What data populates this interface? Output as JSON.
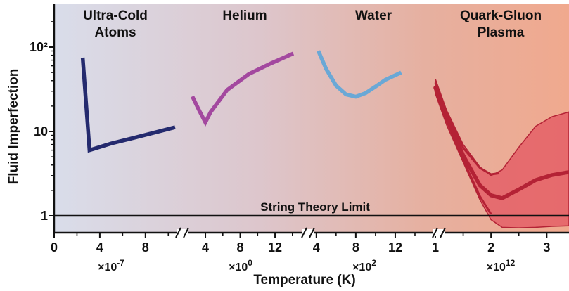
{
  "chart_data": {
    "type": "line",
    "xlabel": "Temperature (K)",
    "ylabel": "Fluid Imperfection",
    "y_scale": "log",
    "y_ticks": [
      {
        "value": 1,
        "label": "1"
      },
      {
        "value": 10,
        "label": "10"
      },
      {
        "value": 100,
        "label": "10²"
      }
    ],
    "limit_line": {
      "value": 1,
      "label": "String Theory Limit"
    },
    "background_colors": [
      "#d9ddea",
      "#ddc6cc",
      "#e6b0a0",
      "#f0a98e"
    ],
    "panels": [
      {
        "name": "Ultra-Cold Atoms",
        "title_lines": [
          "Ultra-Cold",
          "Atoms"
        ],
        "multiplier_label": "×10",
        "multiplier_exp": "-7",
        "xlim": [
          0,
          10.6
        ],
        "ticks": [
          {
            "v": 0,
            "label": "0"
          },
          {
            "v": 4,
            "label": "4"
          },
          {
            "v": 8,
            "label": "8"
          }
        ],
        "minor_ticks": [
          2,
          6,
          10
        ],
        "color": "#242a6e",
        "points": [
          [
            2.5,
            75
          ],
          [
            3.1,
            6
          ],
          [
            5,
            7.2
          ],
          [
            7,
            8.4
          ],
          [
            10.6,
            11.2
          ]
        ]
      },
      {
        "name": "Helium",
        "title_lines": [
          "Helium"
        ],
        "multiplier_label": "×10",
        "multiplier_exp": "0",
        "xlim": [
          2.3,
          14.5
        ],
        "ticks": [
          {
            "v": 4,
            "label": "4"
          },
          {
            "v": 8,
            "label": "8"
          },
          {
            "v": 12,
            "label": "12"
          }
        ],
        "minor_ticks": [
          6,
          10,
          14
        ],
        "color": "#a3489f",
        "points": [
          [
            2.5,
            26
          ],
          [
            3.2,
            18.5
          ],
          [
            4,
            12.8
          ],
          [
            4.6,
            17
          ],
          [
            6.5,
            31
          ],
          [
            9,
            48
          ],
          [
            11.5,
            64
          ],
          [
            14.1,
            84
          ]
        ]
      },
      {
        "name": "Water",
        "title_lines": [
          "Water"
        ],
        "multiplier_label": "×10",
        "multiplier_exp": "2",
        "xlim": [
          3.8,
          14.5
        ],
        "ticks": [
          {
            "v": 4,
            "label": "4"
          },
          {
            "v": 8,
            "label": "8"
          },
          {
            "v": 12,
            "label": "12"
          }
        ],
        "minor_ticks": [
          6,
          10,
          14
        ],
        "color": "#6aa8d6",
        "points": [
          [
            4.2,
            90
          ],
          [
            5,
            55
          ],
          [
            6,
            35
          ],
          [
            7,
            27.5
          ],
          [
            8,
            25.8
          ],
          [
            9,
            28.5
          ],
          [
            10,
            34
          ],
          [
            11,
            41
          ],
          [
            12.6,
            50
          ]
        ]
      },
      {
        "name": "Quark-Gluon Plasma",
        "title_lines": [
          "Quark-Gluon",
          "Plasma"
        ],
        "multiplier_label": "×10",
        "multiplier_exp": "12",
        "xlim": [
          0.95,
          3.4
        ],
        "ticks": [
          {
            "v": 1,
            "label": "1"
          },
          {
            "v": 2,
            "label": "2"
          },
          {
            "v": 3,
            "label": "3"
          }
        ],
        "minor_ticks": [
          1.5,
          2.5
        ],
        "color": "#b42235",
        "band_color": "#e2505e",
        "band_upper": [
          [
            1,
            42
          ],
          [
            1.2,
            18
          ],
          [
            1.5,
            7
          ],
          [
            1.8,
            3.8
          ],
          [
            2,
            3
          ],
          [
            2.2,
            3.5
          ],
          [
            2.5,
            6.5
          ],
          [
            2.8,
            11.5
          ],
          [
            3.1,
            15
          ],
          [
            3.4,
            17
          ]
        ],
        "band_lower": [
          [
            1,
            28
          ],
          [
            1.2,
            12
          ],
          [
            1.5,
            4.3
          ],
          [
            1.8,
            1.55
          ],
          [
            2,
            0.9
          ],
          [
            2.2,
            0.73
          ],
          [
            2.5,
            0.72
          ],
          [
            2.8,
            0.73
          ],
          [
            3.1,
            0.75
          ],
          [
            3.4,
            0.76
          ]
        ],
        "series_center": [
          [
            1,
            33
          ],
          [
            1.2,
            15
          ],
          [
            1.5,
            5.2
          ],
          [
            1.8,
            2.3
          ],
          [
            2,
            1.75
          ],
          [
            2.2,
            1.62
          ],
          [
            2.5,
            2.05
          ],
          [
            2.8,
            2.65
          ],
          [
            3.1,
            3.05
          ],
          [
            3.4,
            3.3
          ]
        ],
        "series_upper_edge": [
          [
            1,
            38
          ],
          [
            1.2,
            17
          ],
          [
            1.5,
            6.4
          ],
          [
            1.8,
            3.7
          ],
          [
            2,
            3.1
          ],
          [
            2.15,
            3.2
          ]
        ],
        "series_lower_edge": [
          [
            1,
            30
          ],
          [
            1.2,
            13.5
          ],
          [
            1.5,
            4.6
          ],
          [
            1.8,
            1.7
          ],
          [
            2,
            1.05
          ]
        ]
      }
    ]
  }
}
